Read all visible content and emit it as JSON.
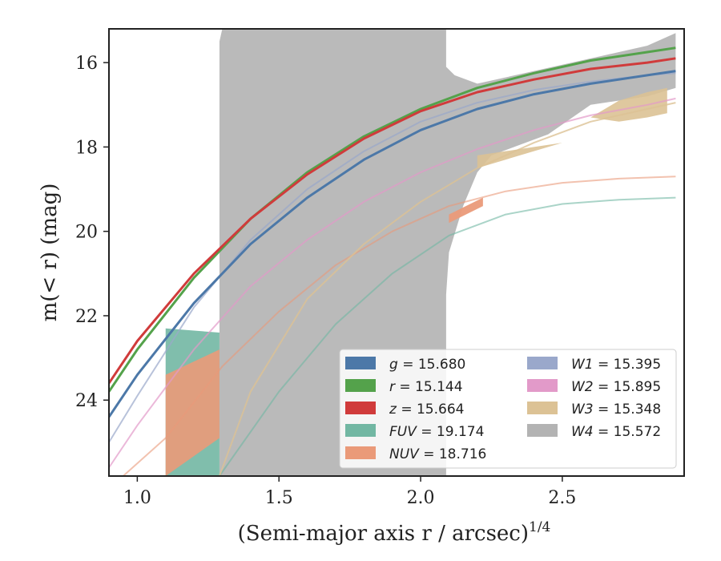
{
  "chart_data": {
    "type": "line",
    "title": "",
    "xlabel": "(Semi-major axis r / arcsec)",
    "xlabel_exponent": "1/4",
    "ylabel": "m(< r) (mag)",
    "xlim": [
      0.9,
      2.93
    ],
    "ylim": [
      25.8,
      15.2
    ],
    "y_inverted": true,
    "grid": false,
    "xticks": [
      "1.0",
      "1.5",
      "2.0",
      "2.5"
    ],
    "xtick_values": [
      1.0,
      1.5,
      2.0,
      2.5
    ],
    "yticks": [
      "16",
      "18",
      "20",
      "22",
      "24"
    ],
    "ytick_values": [
      16,
      18,
      20,
      22,
      24
    ],
    "legend_position": "lower-right",
    "legend_columns": [
      [
        {
          "prefix": "g",
          "text": " = 15.680",
          "color": "#4c78a8"
        },
        {
          "prefix": "r",
          "text": " = 15.144",
          "color": "#54a24b"
        },
        {
          "prefix": "z",
          "text": " = 15.664",
          "color": "#d03b3b"
        },
        {
          "prefix": "FUV",
          "text": " = 19.174",
          "color": "#72b7a3"
        },
        {
          "prefix": "NUV",
          "text": " = 18.716",
          "color": "#ea9a79"
        }
      ],
      [
        {
          "prefix": "W1",
          "text": " = 15.395",
          "color": "#9aa8cb"
        },
        {
          "prefix": "W2",
          "text": " = 15.895",
          "color": "#e29ac9"
        },
        {
          "prefix": "W3",
          "text": " = 15.348",
          "color": "#dcc295"
        },
        {
          "prefix": "W4",
          "text": " = 15.572",
          "color": "#b3b3b3"
        }
      ]
    ],
    "series": [
      {
        "name": "W4",
        "role": "band",
        "color": "#b3b3b3",
        "x": [
          1.29,
          1.3,
          1.5,
          1.7,
          1.85,
          2.0,
          2.09,
          2.09,
          2.12,
          2.2,
          2.4,
          2.6,
          2.8,
          2.9,
          2.9,
          2.8,
          2.6,
          2.45,
          2.25,
          2.2,
          2.15,
          2.1,
          2.09,
          2.09,
          2.0,
          1.85,
          1.7,
          1.5,
          1.35,
          1.3,
          1.29
        ],
        "upper": [
          15.5,
          15.2,
          15.2,
          15.2,
          15.2,
          15.2,
          15.2,
          16.1,
          16.3,
          16.5,
          16.2,
          15.9,
          15.6,
          15.3,
          16.6,
          16.8,
          17.0,
          17.7,
          18.2,
          18.6,
          19.4,
          20.5,
          21.5,
          25.8,
          25.8,
          25.8,
          25.8,
          25.8,
          25.8,
          25.8,
          25.8
        ]
      },
      {
        "name": "W3",
        "role": "band",
        "color": "#dcc295",
        "x": [
          2.2,
          2.3,
          2.4,
          2.5,
          2.6,
          2.7,
          2.8,
          2.87,
          2.87,
          2.8,
          2.7,
          2.6,
          2.5,
          2.4,
          2.3,
          2.2
        ],
        "upper": [
          18.2,
          18.1,
          18.0,
          17.9,
          17.3,
          16.9,
          16.7,
          16.6,
          17.2,
          17.3,
          17.4,
          17.3,
          17.9,
          18.1,
          18.3,
          18.5
        ]
      },
      {
        "name": "FUV",
        "role": "band",
        "color": "#72b7a3",
        "x": [
          1.1,
          1.29,
          1.29,
          1.1
        ],
        "upper": [
          22.3,
          22.4,
          25.8,
          25.8
        ]
      },
      {
        "name": "NUV",
        "role": "band",
        "color": "#ea9a79",
        "x": [
          1.1,
          1.29,
          1.29,
          1.1
        ],
        "upper": [
          23.4,
          22.8,
          24.9,
          25.8
        ]
      },
      {
        "name": "NUV",
        "role": "segment",
        "color": "#ea9a79",
        "x": [
          2.1,
          2.22,
          2.22,
          2.1
        ],
        "upper": [
          19.6,
          19.2,
          19.4,
          19.8
        ]
      },
      {
        "name": "FUV",
        "role": "curve",
        "color": "#72b7a3",
        "width": 2,
        "opacity": 0.6,
        "x": [
          1.29,
          1.5,
          1.7,
          1.9,
          2.1,
          2.3,
          2.5,
          2.7,
          2.9
        ],
        "y": [
          25.8,
          23.8,
          22.2,
          21.0,
          20.1,
          19.6,
          19.35,
          19.25,
          19.2
        ]
      },
      {
        "name": "NUV",
        "role": "curve",
        "color": "#ea9a79",
        "width": 2,
        "opacity": 0.6,
        "x": [
          0.95,
          1.1,
          1.3,
          1.5,
          1.7,
          1.9,
          2.1,
          2.3,
          2.5,
          2.7,
          2.9
        ],
        "y": [
          25.8,
          24.9,
          23.2,
          21.9,
          20.8,
          20.0,
          19.4,
          19.05,
          18.85,
          18.75,
          18.7
        ]
      },
      {
        "name": "W3",
        "role": "curve",
        "color": "#dcc295",
        "width": 2,
        "opacity": 0.8,
        "x": [
          1.29,
          1.4,
          1.6,
          1.8,
          2.0,
          2.2,
          2.4,
          2.6,
          2.8,
          2.9
        ],
        "y": [
          25.8,
          23.8,
          21.6,
          20.3,
          19.3,
          18.5,
          17.9,
          17.4,
          17.1,
          16.95
        ]
      },
      {
        "name": "W2",
        "role": "curve",
        "color": "#e29ac9",
        "width": 2,
        "opacity": 0.7,
        "x": [
          0.9,
          1.0,
          1.2,
          1.4,
          1.6,
          1.8,
          2.0,
          2.2,
          2.4,
          2.6,
          2.8,
          2.9
        ],
        "y": [
          25.6,
          24.6,
          22.8,
          21.3,
          20.2,
          19.3,
          18.6,
          18.05,
          17.6,
          17.25,
          17.0,
          16.85
        ]
      },
      {
        "name": "W1",
        "role": "curve",
        "color": "#9aa8cb",
        "width": 2,
        "opacity": 0.7,
        "x": [
          0.9,
          1.0,
          1.2,
          1.4,
          1.6,
          1.8,
          2.0,
          2.2,
          2.4,
          2.6,
          2.8,
          2.9
        ],
        "y": [
          25.0,
          23.9,
          21.8,
          20.2,
          19.0,
          18.1,
          17.4,
          16.95,
          16.65,
          16.45,
          16.3,
          16.25
        ]
      },
      {
        "name": "g",
        "role": "curve",
        "color": "#4c78a8",
        "width": 3,
        "opacity": 1,
        "x": [
          0.9,
          1.0,
          1.2,
          1.4,
          1.6,
          1.8,
          2.0,
          2.2,
          2.4,
          2.6,
          2.8,
          2.9
        ],
        "y": [
          24.4,
          23.4,
          21.7,
          20.3,
          19.2,
          18.3,
          17.6,
          17.1,
          16.75,
          16.5,
          16.3,
          16.2
        ]
      },
      {
        "name": "r",
        "role": "curve",
        "color": "#54a24b",
        "width": 3,
        "opacity": 1,
        "x": [
          0.9,
          1.0,
          1.2,
          1.4,
          1.6,
          1.8,
          2.0,
          2.2,
          2.4,
          2.6,
          2.8,
          2.9
        ],
        "y": [
          23.8,
          22.8,
          21.1,
          19.7,
          18.6,
          17.75,
          17.1,
          16.6,
          16.25,
          15.95,
          15.75,
          15.65
        ]
      },
      {
        "name": "z",
        "role": "curve",
        "color": "#d03b3b",
        "width": 3,
        "opacity": 1,
        "x": [
          0.9,
          1.0,
          1.2,
          1.4,
          1.6,
          1.8,
          2.0,
          2.2,
          2.4,
          2.6,
          2.8,
          2.9
        ],
        "y": [
          23.6,
          22.6,
          21.0,
          19.7,
          18.65,
          17.8,
          17.15,
          16.7,
          16.4,
          16.15,
          16.0,
          15.9
        ]
      }
    ]
  }
}
